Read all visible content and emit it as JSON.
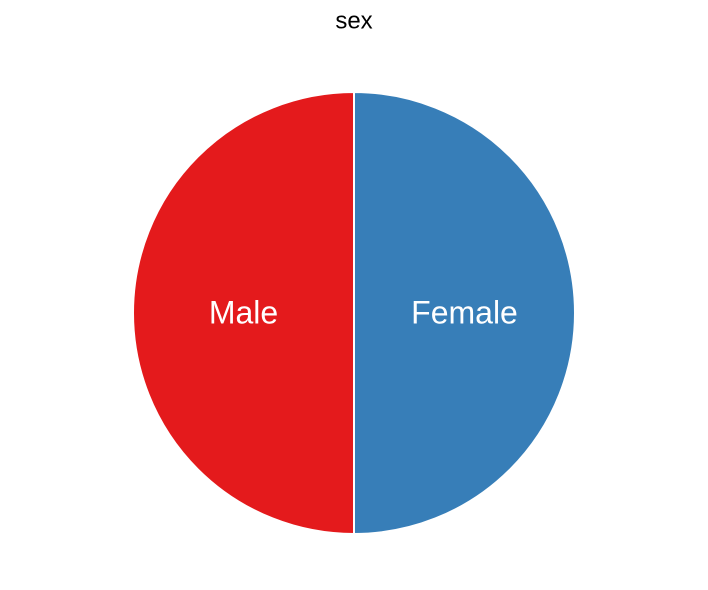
{
  "chart_data": {
    "type": "pie",
    "title": "sex",
    "categories": [
      "Female",
      "Male"
    ],
    "values": [
      50,
      50
    ],
    "colors": [
      "#377eb8",
      "#e41a1c"
    ]
  }
}
